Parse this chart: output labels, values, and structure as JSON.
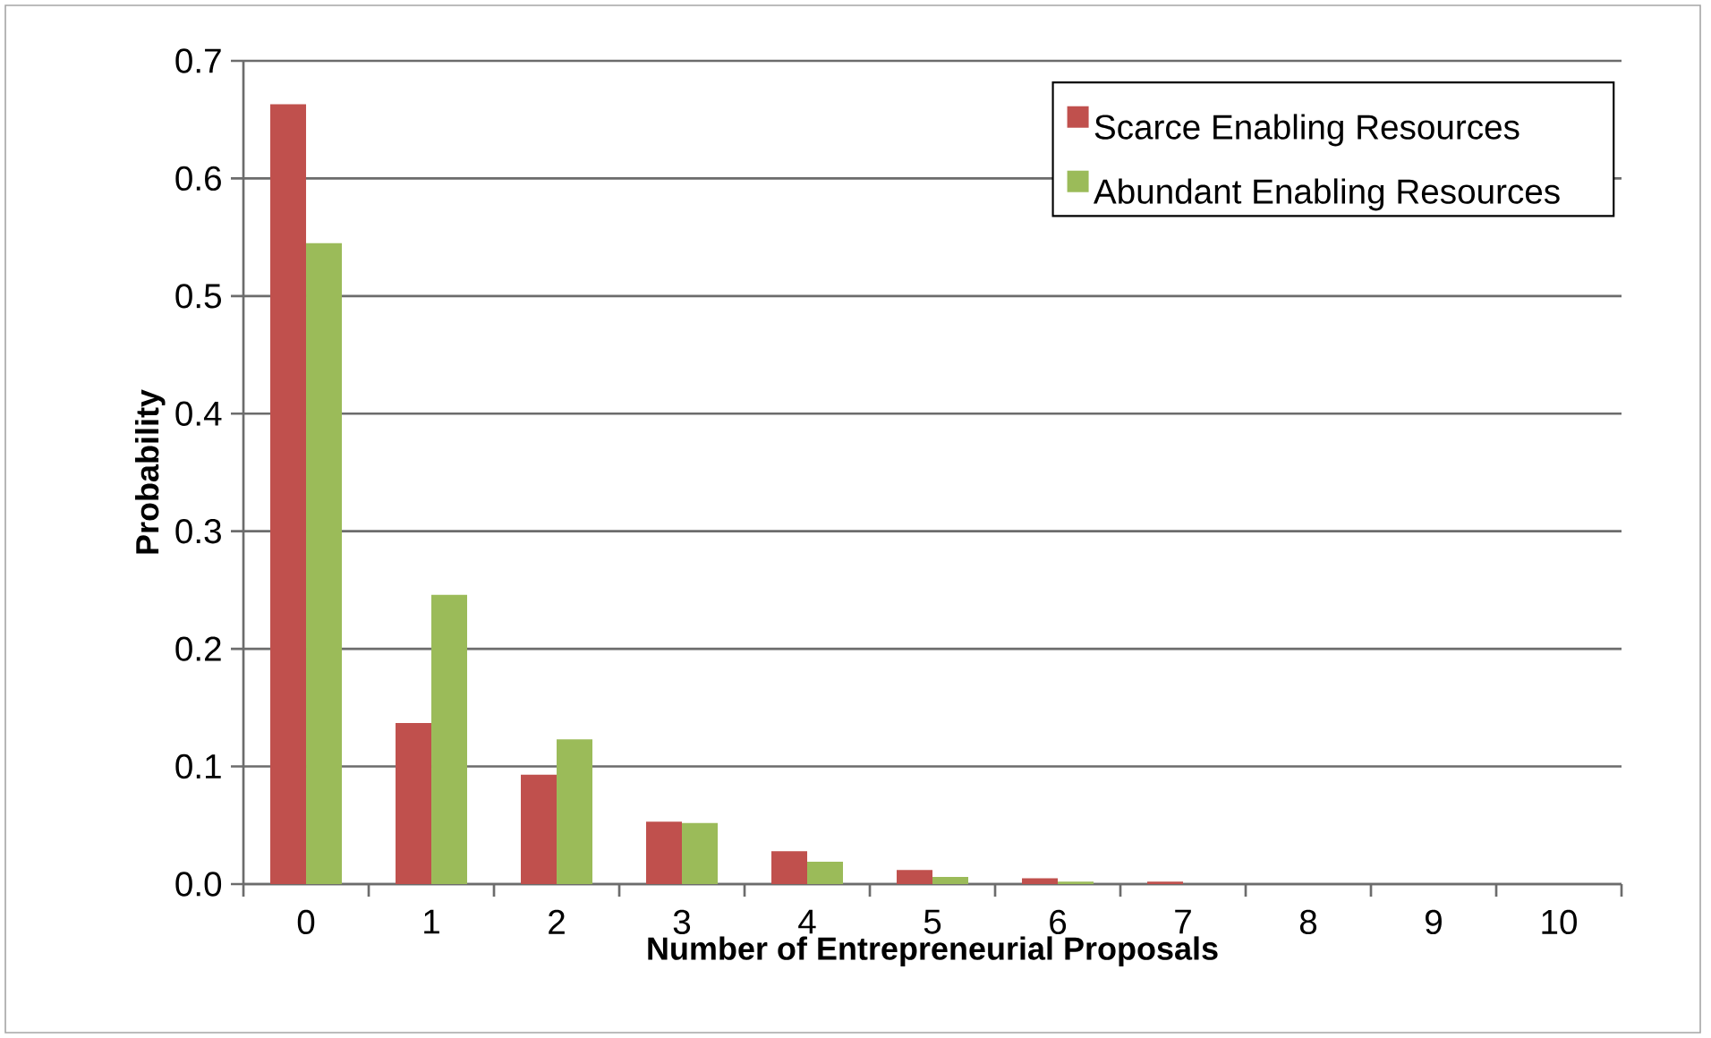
{
  "chart_data": {
    "type": "bar",
    "xlabel": "Number of Entrepreneurial Proposals",
    "ylabel": "Probability",
    "categories": [
      "0",
      "1",
      "2",
      "3",
      "4",
      "5",
      "6",
      "7",
      "8",
      "9",
      "10"
    ],
    "series": [
      {
        "name": "Scarce Enabling Resources",
        "color": "#c0504d",
        "values": [
          0.663,
          0.137,
          0.093,
          0.053,
          0.028,
          0.012,
          0.005,
          0.002,
          0,
          0,
          0
        ]
      },
      {
        "name": "Abundant Enabling Resources",
        "color": "#9bbb59",
        "values": [
          0.545,
          0.246,
          0.123,
          0.052,
          0.019,
          0.006,
          0.002,
          0,
          0,
          0,
          0
        ]
      }
    ],
    "ylim": [
      0,
      0.7
    ],
    "yticks": [
      {
        "value": 0,
        "label": "0.0"
      },
      0.1,
      0.2,
      0.3,
      0.4,
      0.5,
      0.6,
      0.7
    ],
    "grid": "y",
    "legend": "top right"
  }
}
